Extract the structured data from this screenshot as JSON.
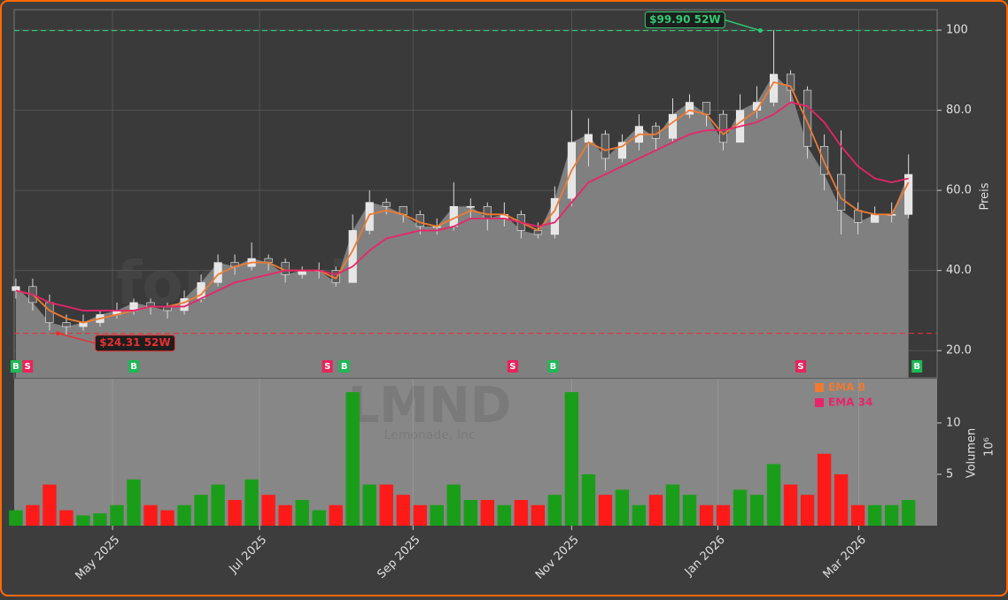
{
  "chart_data": [
    {
      "type": "candlestick",
      "open": [
        35,
        36,
        32,
        27,
        26,
        27,
        29,
        30,
        32,
        31,
        30,
        33,
        37,
        42,
        41,
        43,
        42,
        39,
        40,
        40,
        37,
        50,
        57,
        56,
        54,
        51,
        51,
        56,
        56,
        53,
        54,
        50,
        49,
        58,
        72,
        74,
        68,
        72,
        76,
        73,
        79,
        82,
        79,
        72,
        80,
        82,
        89,
        85,
        71,
        64,
        55,
        52,
        54,
        54
      ],
      "high": [
        38,
        38,
        34,
        29,
        29,
        30,
        32,
        33,
        33,
        32,
        35,
        39,
        44,
        44,
        47,
        44,
        43,
        41,
        42,
        41,
        54,
        60,
        58,
        56,
        55,
        53,
        62,
        58,
        57,
        57,
        55,
        52,
        61,
        80,
        78,
        75,
        74,
        79,
        77,
        83,
        84,
        82,
        80,
        84,
        86,
        100,
        90,
        86,
        74,
        75,
        57,
        56,
        57,
        69
      ],
      "low": [
        33,
        30,
        25,
        24,
        25,
        26,
        28,
        29,
        29,
        28,
        29,
        32,
        36,
        39,
        40,
        40,
        37,
        38,
        38,
        36,
        37,
        49,
        54,
        52,
        49,
        49,
        50,
        53,
        50,
        51,
        48,
        48,
        48,
        56,
        66,
        65,
        67,
        70,
        70,
        72,
        78,
        76,
        70,
        72,
        78,
        81,
        82,
        68,
        60,
        49,
        49,
        52,
        52,
        53
      ],
      "close": [
        36,
        32,
        27,
        26,
        27,
        29,
        30,
        32,
        31,
        30,
        33,
        37,
        42,
        41,
        43,
        42,
        39,
        40,
        40,
        37,
        50,
        57,
        56,
        54,
        51,
        51,
        56,
        56,
        53,
        54,
        50,
        49,
        58,
        72,
        74,
        68,
        72,
        76,
        73,
        79,
        82,
        79,
        72,
        80,
        82,
        89,
        85,
        71,
        64,
        55,
        52,
        54,
        54,
        64
      ],
      "up_color": "#e6e6e6",
      "down_color": "#5a5a5a",
      "area_color": "#808080",
      "series": [
        {
          "name": "EMA 8",
          "color": "#f07a30",
          "values": [
            35,
            34,
            30,
            28,
            27,
            28,
            29,
            30,
            31,
            31,
            32,
            34,
            39,
            41,
            42,
            42,
            40,
            40,
            40,
            38,
            45,
            54,
            55,
            54,
            52,
            51,
            53,
            55,
            54,
            54,
            52,
            50,
            55,
            65,
            72,
            70,
            71,
            74,
            74,
            77,
            80,
            79,
            74,
            77,
            80,
            87,
            86,
            77,
            67,
            58,
            55,
            54,
            54,
            62
          ]
        },
        {
          "name": "EMA 34",
          "color": "#e8246a",
          "values": [
            35,
            34,
            32,
            31,
            30,
            30,
            30,
            30,
            31,
            31,
            31,
            33,
            35,
            37,
            38,
            39,
            40,
            40,
            40,
            39,
            41,
            45,
            48,
            49,
            50,
            50,
            51,
            53,
            53,
            53,
            52,
            51,
            52,
            57,
            62,
            64,
            66,
            68,
            70,
            72,
            74,
            75,
            75,
            76,
            77,
            79,
            82,
            81,
            77,
            71,
            66,
            63,
            62,
            63
          ]
        }
      ],
      "ylim": [
        13.2,
        105.1
      ],
      "yticks": [
        {
          "value": 20,
          "label": "20.0"
        },
        {
          "value": 40,
          "label": "40.0"
        },
        {
          "value": 60,
          "label": "60.0"
        },
        {
          "value": 80,
          "label": "80.0"
        },
        {
          "value": 100,
          "label": "100"
        }
      ],
      "ylabel": "Preis",
      "reference_lines": [
        {
          "value": 99.9,
          "x": 44.2,
          "label": "$99.90 52W",
          "color": "#2ecc71"
        },
        {
          "value": 24.31,
          "x": 2.5,
          "label": "$24.31 52W",
          "color": "#e83030"
        }
      ],
      "signals": {
        "x": [
          0,
          0.7,
          7,
          18.5,
          19.5,
          29.5,
          31.9,
          46.6,
          53.5
        ],
        "labels": [
          "B",
          "S",
          "B",
          "S",
          "B",
          "S",
          "B",
          "S",
          "B"
        ],
        "colors": {
          "B": "#1db954",
          "S": "#e8245a"
        }
      },
      "watermark": "forexsignale.trade",
      "grid": true
    },
    {
      "type": "bar",
      "values": [
        1.5,
        2,
        4,
        1.5,
        1,
        1.2,
        2,
        4.5,
        2,
        1.5,
        2,
        3,
        4,
        2.5,
        4.5,
        3,
        2,
        2.5,
        1.5,
        2,
        13,
        4,
        4,
        3,
        2,
        2,
        4,
        2.5,
        2.5,
        2,
        2.5,
        2,
        3,
        13,
        5,
        3,
        3.5,
        2,
        3,
        4,
        3,
        2,
        2,
        3.5,
        3,
        6,
        4,
        3,
        7,
        5,
        2,
        2,
        2,
        2.5
      ],
      "up_color": "#1a9e1a",
      "down_color": "#ff1a1a",
      "xlim": [
        -0.1,
        54.7
      ],
      "xticks": [
        {
          "value": 5.74,
          "label": "May 2025"
        },
        {
          "value": 14.47,
          "label": "Jul 2025"
        },
        {
          "value": 23.58,
          "label": "Sep 2025"
        },
        {
          "value": 33.0,
          "label": "Nov 2025"
        },
        {
          "value": 41.68,
          "label": "Jan 2026"
        },
        {
          "value": 50.05,
          "label": "Mar 2026"
        }
      ],
      "ylim": [
        0,
        14.3
      ],
      "yticks": [
        5,
        10
      ],
      "ylabel": "Volumen",
      "yunit": "10⁶",
      "symbol": "LMND",
      "company": "Lemonade, Inc"
    }
  ]
}
